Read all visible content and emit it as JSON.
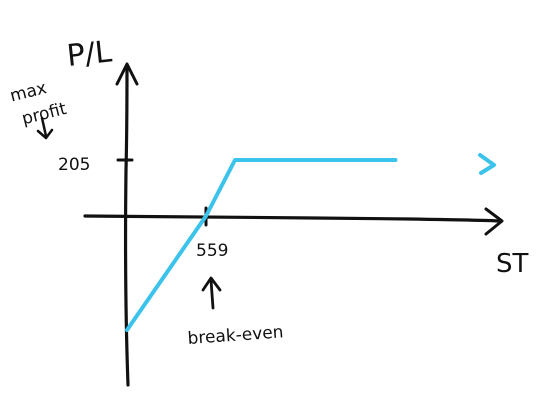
{
  "chart_data": {
    "type": "line",
    "title": "",
    "ylabel": "P/L",
    "xlabel": "ST",
    "x_ticks": [
      {
        "value": 559,
        "label": "559"
      }
    ],
    "y_ticks": [
      {
        "value": 205,
        "label": "205"
      }
    ],
    "series": [
      {
        "values_note": "",
        "points": [
          {
            "x": 0,
            "y": -559
          },
          {
            "x": 559,
            "y": 0
          },
          {
            "x": 764,
            "y": 205
          },
          {
            "x": 1900,
            "y": 205
          }
        ]
      }
    ],
    "annotations": [
      {
        "text": "max profit",
        "points_to": "205"
      },
      {
        "text": "break-even",
        "points_to": "559"
      }
    ],
    "grid": false,
    "legend": "none",
    "colors": {
      "payoff": "#3bc3ec",
      "axes": "#111111"
    }
  }
}
